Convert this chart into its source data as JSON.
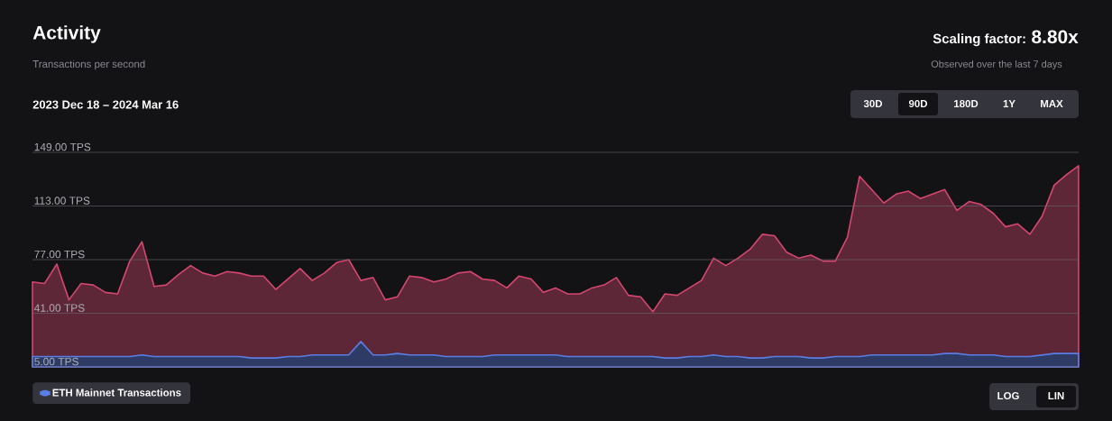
{
  "chart_data": {
    "type": "area",
    "title": "Activity",
    "subtitle": "Transactions per second",
    "annotations": [
      "2023 Dec 18 – 2024 Mar 16",
      "Scaling factor:",
      "8.80x",
      "Observed over the last 7 days",
      "30D",
      "90D",
      "180D",
      "1Y",
      "MAX",
      "LOG",
      "LIN"
    ],
    "categories": [
      null,
      null,
      null,
      null,
      null,
      null,
      null,
      null,
      null,
      null,
      null,
      null,
      null,
      null,
      null,
      null,
      null,
      null,
      null,
      null,
      null,
      null,
      null,
      null,
      null,
      null,
      null,
      null,
      null,
      null,
      null,
      null,
      null,
      null,
      null,
      null,
      null,
      null,
      null,
      null,
      null,
      null,
      null,
      null,
      null,
      null,
      null,
      null,
      null,
      null,
      null,
      null,
      null,
      null,
      null,
      null,
      null,
      null,
      null,
      null,
      null,
      null,
      null,
      null,
      null,
      null,
      null,
      null,
      null,
      null,
      null,
      null,
      null,
      null,
      null,
      null,
      null,
      null,
      null,
      null,
      null,
      null,
      null,
      null,
      null,
      null,
      null
    ],
    "series": [
      {
        "color": "#d5476f",
        "values": [
          62,
          61,
          74,
          50,
          61,
          60,
          55,
          54,
          76,
          89,
          59,
          60,
          67,
          73,
          68,
          66,
          69,
          68,
          66,
          66,
          57,
          64,
          71,
          63,
          68,
          75,
          77,
          63,
          65,
          50,
          52,
          66,
          65,
          62,
          64,
          68,
          69,
          64,
          63,
          58,
          66,
          64,
          55,
          58,
          54,
          54,
          58,
          60,
          65,
          53,
          52,
          42,
          54,
          53,
          58,
          63,
          78,
          73,
          78,
          84,
          94,
          93,
          82,
          78,
          80,
          76,
          76,
          92,
          133,
          124,
          115,
          121,
          123,
          118,
          121,
          124,
          110,
          116,
          114,
          108,
          99,
          101,
          94,
          106,
          127,
          134,
          140
        ]
      },
      {
        "name": "ETH Mainnet Transactions",
        "color": "#5b7ee5",
        "values": [
          12,
          12,
          12,
          12,
          12,
          12,
          12,
          12,
          12,
          13,
          12,
          12,
          12,
          12,
          12,
          12,
          12,
          12,
          11,
          11,
          11,
          12,
          12,
          13,
          13,
          13,
          13,
          22,
          13,
          13,
          14,
          13,
          13,
          13,
          12,
          12,
          12,
          12,
          13,
          13,
          13,
          13,
          13,
          13,
          12,
          12,
          12,
          12,
          12,
          12,
          12,
          12,
          11,
          11,
          12,
          12,
          13,
          12,
          12,
          11,
          11,
          12,
          12,
          12,
          11,
          11,
          12,
          12,
          12,
          13,
          13,
          13,
          13,
          13,
          13,
          14,
          14,
          13,
          13,
          13,
          12,
          12,
          12,
          13,
          14,
          14,
          14
        ]
      }
    ],
    "ylim": [
      5,
      149
    ],
    "yticks": [
      {
        "value": 5,
        "label": "5.00 TPS"
      },
      {
        "value": 41,
        "label": "41.00 TPS"
      },
      {
        "value": 77,
        "label": "77.00 TPS"
      },
      {
        "value": 113,
        "label": "113.00 TPS"
      },
      {
        "value": 149,
        "label": "149.00 TPS"
      }
    ],
    "tick_labels": "y",
    "grid": "y",
    "legend": "bottom left",
    "marker": "none"
  }
}
